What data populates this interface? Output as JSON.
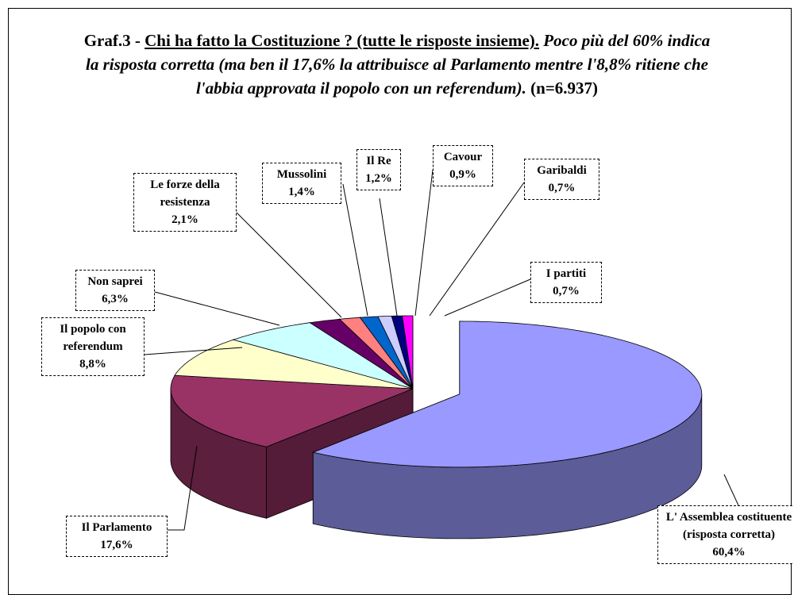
{
  "chart_data": {
    "type": "pie3d",
    "title": {
      "prefix": "Graf.3 -",
      "question": "Chi ha fatto la Costituzione ? (tutte le risposte insieme).",
      "comment": "Poco più del 60% indica la risposta corretta (ma ben il 17,6% la attribuisce al Parlamento mentre l'8,8% ritiene che l'abbia approvata il popolo con un referendum).",
      "n": "(n=6.937)"
    },
    "categories": [
      "L' Assemblea costituente (risposta corretta)",
      "Il Parlamento",
      "Il popolo con referendum",
      "Non saprei",
      "Le forze della resistenza",
      "Mussolini",
      "Il Re",
      "Cavour",
      "Garibaldi",
      "I partiti"
    ],
    "values": [
      60.4,
      17.6,
      8.8,
      6.3,
      2.1,
      1.4,
      1.2,
      0.9,
      0.7,
      0.7
    ],
    "value_labels": [
      "60,4%",
      "17,6%",
      "8,8%",
      "6,3%",
      "2,1%",
      "1,4%",
      "1,2%",
      "0,9%",
      "0,7%",
      "0,7%"
    ],
    "colors": [
      "#9999ff",
      "#993366",
      "#ffffcc",
      "#ccffff",
      "#660066",
      "#ff8080",
      "#0066cc",
      "#ccccff",
      "#000080",
      "#ff00ff"
    ],
    "exploded": [
      0
    ]
  }
}
